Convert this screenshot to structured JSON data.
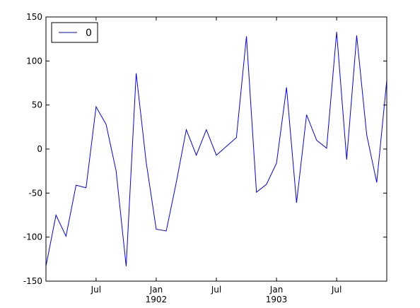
{
  "chart_data": {
    "type": "line",
    "x": [
      "1901-02",
      "1901-03",
      "1901-04",
      "1901-05",
      "1901-06",
      "1901-07",
      "1901-08",
      "1901-09",
      "1901-10",
      "1901-11",
      "1901-12",
      "1902-01",
      "1902-02",
      "1902-03",
      "1902-04",
      "1902-05",
      "1902-06",
      "1902-07",
      "1902-08",
      "1902-09",
      "1902-10",
      "1902-11",
      "1902-12",
      "1903-01",
      "1903-02",
      "1903-03",
      "1903-04",
      "1903-05",
      "1903-06",
      "1903-07",
      "1903-08",
      "1903-09",
      "1903-10",
      "1903-11",
      "1903-12"
    ],
    "series": [
      {
        "name": "0",
        "color": "#0000ff",
        "values": [
          -133,
          -75,
          -99,
          -41,
          -44,
          48,
          28,
          -25,
          -133,
          86,
          -15,
          -91,
          -93,
          -38,
          22,
          -7,
          22,
          -7,
          3,
          13,
          128,
          -49,
          -40,
          -16,
          70,
          -61,
          39,
          10,
          1,
          133,
          -12,
          129,
          16,
          -38,
          78
        ]
      }
    ],
    "xlim": [
      "1901-02",
      "1903-12"
    ],
    "xticks": [
      {
        "value": "1901-07",
        "label": "Jul"
      },
      {
        "value": "1902-01",
        "label": "Jan\n1902"
      },
      {
        "value": "1902-07",
        "label": "Jul"
      },
      {
        "value": "1903-01",
        "label": "Jan\n1903"
      },
      {
        "value": "1903-07",
        "label": "Jul"
      }
    ],
    "ylim": [
      -150,
      150
    ],
    "yticks": [
      -150,
      -100,
      -50,
      0,
      50,
      100,
      150
    ],
    "legend": "upper left"
  }
}
